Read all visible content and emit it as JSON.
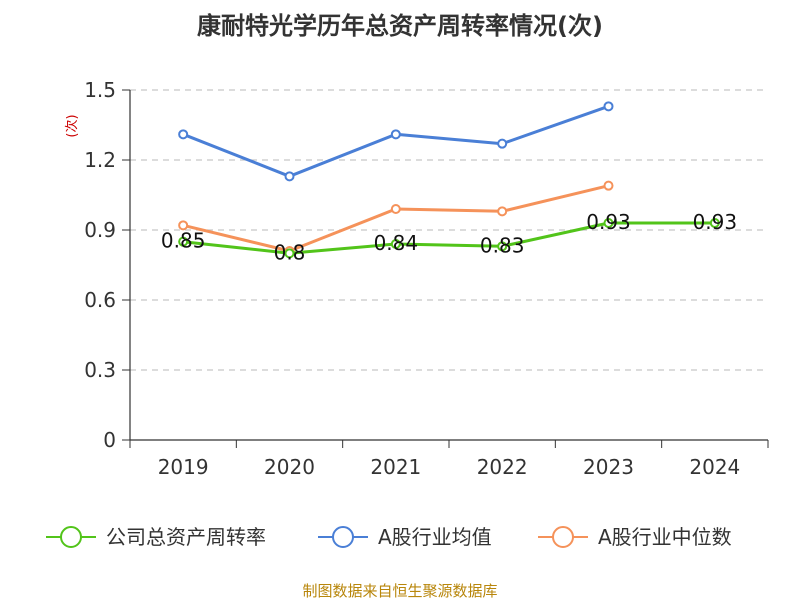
{
  "chart_data": {
    "type": "line",
    "title": "康耐特光学历年总资产周转率情况(次)",
    "ylabel": "(次)",
    "categories": [
      "2019",
      "2020",
      "2021",
      "2022",
      "2023",
      "2024"
    ],
    "ylim": [
      0,
      1.5
    ],
    "yticks": [
      "0",
      "0.3",
      "0.6",
      "0.9",
      "1.2",
      "1.5"
    ],
    "grid": true,
    "legend_position": "bottom",
    "series": [
      {
        "name": "公司总资产周转率",
        "color": "#52c41a",
        "values": [
          0.85,
          0.8,
          0.84,
          0.83,
          0.93,
          0.93
        ],
        "labels": [
          "0.85",
          "0.8",
          "0.84",
          "0.83",
          "0.93",
          "0.93"
        ]
      },
      {
        "name": "A股行业均值",
        "color": "#4a7fd6",
        "values": [
          1.31,
          1.13,
          1.31,
          1.27,
          1.43,
          null
        ]
      },
      {
        "name": "A股行业中位数",
        "color": "#f5925a",
        "values": [
          0.92,
          0.81,
          0.99,
          0.98,
          1.09,
          null
        ]
      }
    ],
    "source": "制图数据来自恒生聚源数据库"
  }
}
